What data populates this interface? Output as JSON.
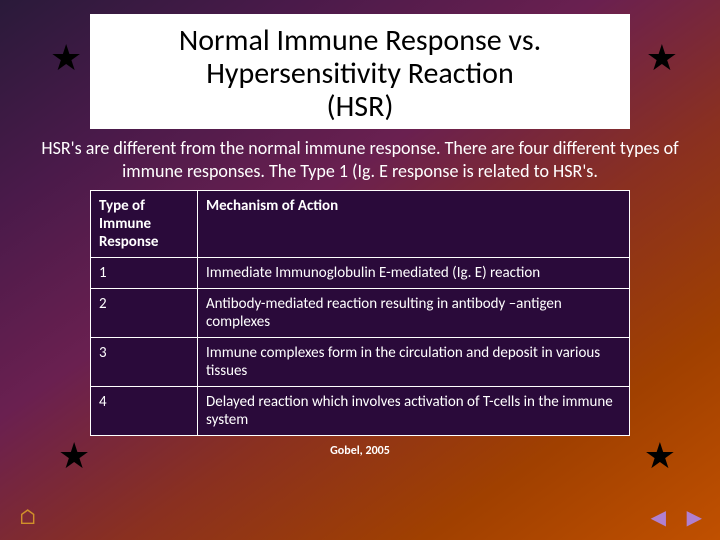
{
  "title": "Normal Immune Response vs. Hypersensitivity Reaction (HSR)",
  "subtitle": "HSR's are different from the normal immune response. There are four different types of immune responses. The Type 1 (Ig. E response is related to HSR's.",
  "table": {
    "header_col1": "Type of Immune Response",
    "header_col2": "Mechanism of Action",
    "rows": [
      {
        "type": "1",
        "mech": "Immediate Immunoglobulin E-mediated (Ig. E) reaction"
      },
      {
        "type": "2",
        "mech": "Antibody-mediated reaction resulting in antibody –antigen complexes"
      },
      {
        "type": "3",
        "mech": "Immune complexes form in the circulation and deposit in various tissues"
      },
      {
        "type": "4",
        "mech": "Delayed reaction which involves activation of T-cells in the immune system"
      }
    ]
  },
  "citation": "Gobel, 2005",
  "colors": {
    "table_bg": "#2a0a3a",
    "text_on_dark": "#ffffff",
    "title_bg": "#ffffff",
    "title_fg": "#000000",
    "star": "#000000",
    "nav_home": "#d0902a",
    "nav_arrow": "#b080d0"
  },
  "icons": {
    "star": "★",
    "home": "⌂",
    "prev": "◀",
    "next": "▶"
  },
  "font_sizes": {
    "title": 30,
    "subtitle": 18,
    "table": 15,
    "citation": 12
  }
}
